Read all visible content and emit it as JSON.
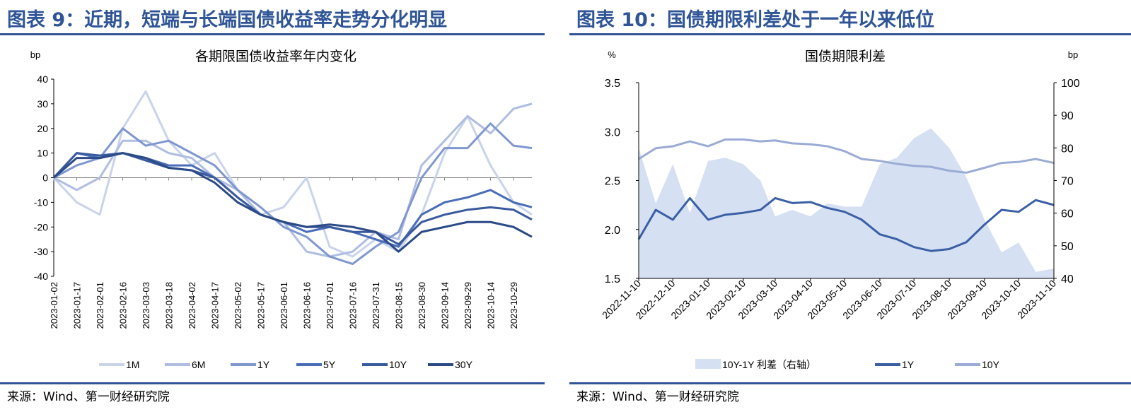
{
  "left": {
    "heading": "图表 9：近期，短端与长端国债收益率走势分化明显",
    "source": "来源：Wind、第一财经研究院"
  },
  "right": {
    "heading": "图表 10：国债期限利差处于一年以来低位",
    "source": "来源：Wind、第一财经研究院"
  },
  "chart_data": [
    {
      "type": "line",
      "title": "各期限国债收益率年内变化",
      "ylabel": "bp",
      "ylim": [
        -40,
        40
      ],
      "yticks": [
        40,
        30,
        20,
        10,
        0,
        -10,
        -20,
        -30,
        -40
      ],
      "xticks": [
        "2023-01-02",
        "2023-01-17",
        "2023-02-01",
        "2023-02-16",
        "2023-03-03",
        "2023-03-18",
        "2023-04-02",
        "2023-04-17",
        "2023-05-02",
        "2023-05-17",
        "2023-06-01",
        "2023-06-16",
        "2023-07-01",
        "2023-07-16",
        "2023-07-31",
        "2023-08-15",
        "2023-08-30",
        "2023-09-14",
        "2023-09-29",
        "2023-10-14",
        "2023-10-29"
      ],
      "x": [
        "2023-01-02",
        "2023-01-17",
        "2023-02-01",
        "2023-02-16",
        "2023-03-03",
        "2023-03-18",
        "2023-04-02",
        "2023-04-17",
        "2023-05-02",
        "2023-05-17",
        "2023-06-01",
        "2023-06-16",
        "2023-07-01",
        "2023-07-16",
        "2023-07-31",
        "2023-08-15",
        "2023-08-30",
        "2023-09-14",
        "2023-09-29",
        "2023-10-14",
        "2023-10-29",
        "2023-11-10"
      ],
      "legend": "bottom",
      "series": [
        {
          "name": "1M",
          "color": "#C9D3EA",
          "values": [
            0,
            -10,
            -15,
            20,
            35,
            15,
            5,
            10,
            -5,
            -15,
            -12,
            0,
            -28,
            -32,
            -25,
            -30,
            -15,
            10,
            25,
            5,
            -10,
            -15
          ]
        },
        {
          "name": "6M",
          "color": "#AFBDE0",
          "values": [
            0,
            -5,
            0,
            15,
            15,
            10,
            8,
            0,
            -5,
            -15,
            -18,
            -30,
            -32,
            -30,
            -22,
            -25,
            5,
            15,
            25,
            18,
            28,
            30
          ]
        },
        {
          "name": "1Y",
          "color": "#7F97CF",
          "values": [
            0,
            5,
            8,
            20,
            13,
            15,
            10,
            5,
            -5,
            -12,
            -20,
            -24,
            -32,
            -35,
            -28,
            -22,
            0,
            12,
            12,
            22,
            13,
            12
          ]
        },
        {
          "name": "5Y",
          "color": "#4A6DB8",
          "values": [
            0,
            10,
            8,
            10,
            8,
            5,
            5,
            0,
            -8,
            -15,
            -18,
            -22,
            -20,
            -22,
            -25,
            -28,
            -15,
            -10,
            -8,
            -5,
            -10,
            -12
          ]
        },
        {
          "name": "10Y",
          "color": "#3A5A9E",
          "values": [
            0,
            10,
            9,
            10,
            7,
            4,
            3,
            0,
            -8,
            -15,
            -18,
            -20,
            -20,
            -22,
            -22,
            -27,
            -18,
            -15,
            -13,
            -12,
            -13,
            -17
          ]
        },
        {
          "name": "30Y",
          "color": "#2B4A86",
          "values": [
            0,
            8,
            8,
            10,
            8,
            4,
            3,
            -2,
            -10,
            -15,
            -18,
            -20,
            -19,
            -20,
            -22,
            -30,
            -22,
            -20,
            -18,
            -18,
            -20,
            -24
          ]
        }
      ]
    },
    {
      "type": "line",
      "title": "国债期限利差",
      "ylabel": "%",
      "ylabel_right": "bp",
      "ylim": [
        1.5,
        3.5
      ],
      "ylim_right": [
        40,
        100
      ],
      "yticks": [
        "3.5",
        "3.0",
        "2.5",
        "2.0",
        "1.5"
      ],
      "yticks_right": [
        "100",
        "90",
        "80",
        "70",
        "60",
        "50",
        "40"
      ],
      "xticks": [
        "2022-11-10",
        "2022-12-10",
        "2023-01-10",
        "2023-02-10",
        "2023-03-10",
        "2023-04-10",
        "2023-05-10",
        "2023-06-10",
        "2023-07-10",
        "2023-08-10",
        "2023-09-10",
        "2023-10-10",
        "2023-11-10"
      ],
      "x": [
        "2022-11-10",
        "2022-11-25",
        "2022-12-10",
        "2022-12-25",
        "2023-01-10",
        "2023-01-25",
        "2023-02-10",
        "2023-02-25",
        "2023-03-10",
        "2023-03-25",
        "2023-04-10",
        "2023-04-25",
        "2023-05-10",
        "2023-05-25",
        "2023-06-10",
        "2023-06-25",
        "2023-07-10",
        "2023-07-25",
        "2023-08-10",
        "2023-08-25",
        "2023-09-10",
        "2023-09-25",
        "2023-10-10",
        "2023-10-25",
        "2023-11-10"
      ],
      "legend": "bottom",
      "series": [
        {
          "name": "10Y-1Y 利差（右轴）",
          "type": "area",
          "axis": "right",
          "color": "#D6E0F3",
          "values": [
            80,
            63,
            75,
            60,
            76,
            77,
            75,
            70,
            59,
            61,
            59,
            63,
            62,
            62,
            75,
            77,
            83,
            86,
            80,
            71,
            58,
            48,
            51,
            42,
            43
          ]
        },
        {
          "name": "1Y",
          "axis": "left",
          "color": "#3A5FA5",
          "values": [
            1.9,
            2.2,
            2.1,
            2.32,
            2.1,
            2.15,
            2.17,
            2.2,
            2.32,
            2.27,
            2.28,
            2.22,
            2.18,
            2.1,
            1.95,
            1.9,
            1.82,
            1.78,
            1.8,
            1.87,
            2.05,
            2.2,
            2.18,
            2.3,
            2.25
          ]
        },
        {
          "name": "10Y",
          "axis": "left",
          "color": "#9AABD6",
          "values": [
            2.72,
            2.83,
            2.85,
            2.9,
            2.85,
            2.92,
            2.92,
            2.9,
            2.91,
            2.88,
            2.87,
            2.85,
            2.8,
            2.72,
            2.7,
            2.67,
            2.65,
            2.64,
            2.6,
            2.58,
            2.63,
            2.68,
            2.69,
            2.72,
            2.68
          ]
        }
      ]
    }
  ]
}
